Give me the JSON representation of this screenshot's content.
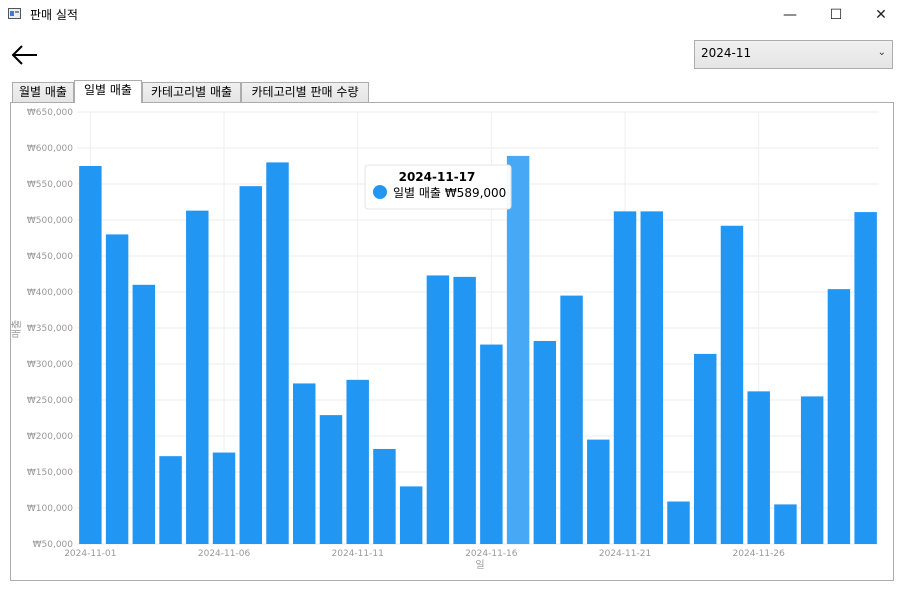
{
  "window": {
    "title": "판매 실적",
    "minimize_glyph": "—",
    "maximize_glyph": "☐",
    "close_glyph": "✕"
  },
  "toolbar": {
    "back_icon": "arrow-left-icon",
    "month_select": {
      "value": "2024-11",
      "chevron": "⌄"
    }
  },
  "tabs": [
    {
      "label": "월별 매출",
      "active": false
    },
    {
      "label": "일별 매출",
      "active": true
    },
    {
      "label": "카테고리별 매출",
      "active": false
    },
    {
      "label": "카테고리별 판매 수량",
      "active": false
    }
  ],
  "tooltip": {
    "title": "2024-11-17",
    "series": "일별 매출",
    "value": "₩589,000"
  },
  "colors": {
    "bar": "#2196f3",
    "bar_highlight": "#47a8f5",
    "grid": "#eeeeee",
    "axis_text": "#999999"
  },
  "chart_data": {
    "type": "bar",
    "xlabel": "일",
    "ylabel": "매출",
    "ylim": [
      50000,
      650000
    ],
    "y_ticks": [
      "₩50,000",
      "₩100,000",
      "₩150,000",
      "₩200,000",
      "₩250,000",
      "₩300,000",
      "₩350,000",
      "₩400,000",
      "₩450,000",
      "₩500,000",
      "₩550,000",
      "₩600,000",
      "₩650,000"
    ],
    "x_tick_labels": [
      "2024-11-01",
      "2024-11-06",
      "2024-11-11",
      "2024-11-16",
      "2024-11-21",
      "2024-11-26"
    ],
    "x_tick_indices": [
      0,
      5,
      10,
      15,
      20,
      25
    ],
    "highlight_index": 16,
    "categories": [
      "2024-11-01",
      "2024-11-02",
      "2024-11-03",
      "2024-11-04",
      "2024-11-05",
      "2024-11-06",
      "2024-11-07",
      "2024-11-08",
      "2024-11-09",
      "2024-11-10",
      "2024-11-11",
      "2024-11-12",
      "2024-11-13",
      "2024-11-14",
      "2024-11-15",
      "2024-11-16",
      "2024-11-17",
      "2024-11-18",
      "2024-11-19",
      "2024-11-20",
      "2024-11-21",
      "2024-11-22",
      "2024-11-23",
      "2024-11-24",
      "2024-11-25",
      "2024-11-26",
      "2024-11-27",
      "2024-11-28",
      "2024-11-29",
      "2024-11-30"
    ],
    "series": [
      {
        "name": "일별 매출",
        "values": [
          575000,
          480000,
          410000,
          172000,
          513000,
          177000,
          547000,
          580000,
          273000,
          229000,
          278000,
          182000,
          130000,
          423000,
          421000,
          327000,
          589000,
          332000,
          395000,
          195000,
          512000,
          512000,
          109000,
          314000,
          492000,
          262000,
          105000,
          255000,
          404000,
          511000
        ]
      }
    ]
  }
}
